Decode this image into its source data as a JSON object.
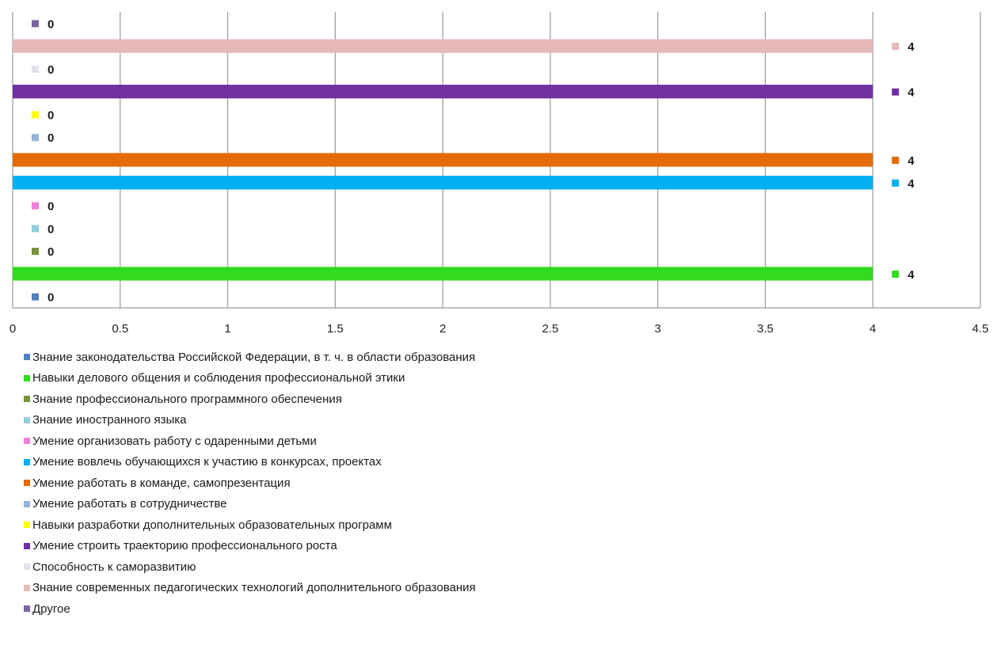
{
  "chart_data": {
    "type": "bar",
    "orientation": "horizontal",
    "xlim": [
      0,
      4.5
    ],
    "x_ticks": [
      "0",
      "0,5",
      "1",
      "1,5",
      "2",
      "2,5",
      "3",
      "3,5",
      "4",
      "4,5"
    ],
    "grid": "vertical",
    "legend_position": "bottom",
    "series": [
      {
        "name": "Знание законодательства Российской Федерации, в т. ч. в области образования",
        "value": 0,
        "color": "#4F81BD",
        "data_label": "0"
      },
      {
        "name": "Навыки делового общения и соблюдения профессиональной этики",
        "value": 4,
        "color": "#33DB1F",
        "data_label": "4"
      },
      {
        "name": "Знание профессионального программного обеспечения",
        "value": 0,
        "color": "#77933C",
        "data_label": "0"
      },
      {
        "name": "Знание иностранного языка",
        "value": 0,
        "color": "#92CDDC",
        "data_label": "0"
      },
      {
        "name": "Умение организовать работу с одаренными детьми",
        "value": 0,
        "color": "#F27FD8",
        "data_label": "0"
      },
      {
        "name": "Умение вовлечь обучающихся к участию в конкурсах, проектах",
        "value": 4,
        "color": "#00B0F0",
        "data_label": "4"
      },
      {
        "name": "Умение работать в команде, самопрезентация",
        "value": 4,
        "color": "#E36C09",
        "data_label": "4"
      },
      {
        "name": "Умение работать в сотрудничестве",
        "value": 0,
        "color": "#95B3D7",
        "data_label": "0"
      },
      {
        "name": "Навыки разработки дополнительных образовательных программ",
        "value": 0,
        "color": "#FFFF00",
        "data_label": "0"
      },
      {
        "name": "Умение строить траекторию профессионального роста",
        "value": 4,
        "color": "#7030A0",
        "data_label": "4"
      },
      {
        "name": "Способность к саморазвитию",
        "value": 0,
        "color": "#E4DFEC",
        "data_label": "0"
      },
      {
        "name": "Знание современных педагогических технологий дополнительного образования",
        "value": 4,
        "color": "#E6B9B8",
        "data_label": "4"
      },
      {
        "name": "Другое",
        "value": 0,
        "color": "#8064A2",
        "data_label": "0"
      }
    ]
  }
}
